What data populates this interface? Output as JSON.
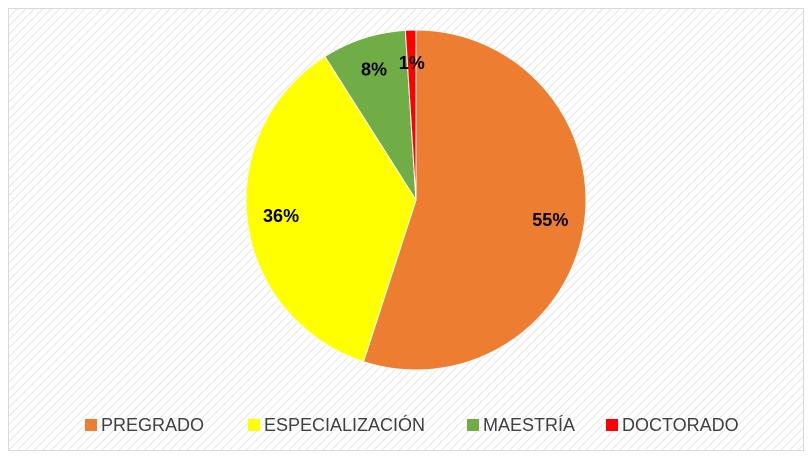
{
  "chart_data": {
    "type": "pie",
    "categories": [
      "PREGRADO",
      "ESPECIALIZACIÓN",
      "MAESTRÍA",
      "DOCTORADO"
    ],
    "values": [
      55,
      36,
      8,
      1
    ],
    "value_labels": [
      "55%",
      "36%",
      "8%",
      "1%"
    ],
    "colors": [
      "#ed7d31",
      "#ffff00",
      "#70ad47",
      "#ff0000"
    ],
    "legend": "bottom"
  }
}
